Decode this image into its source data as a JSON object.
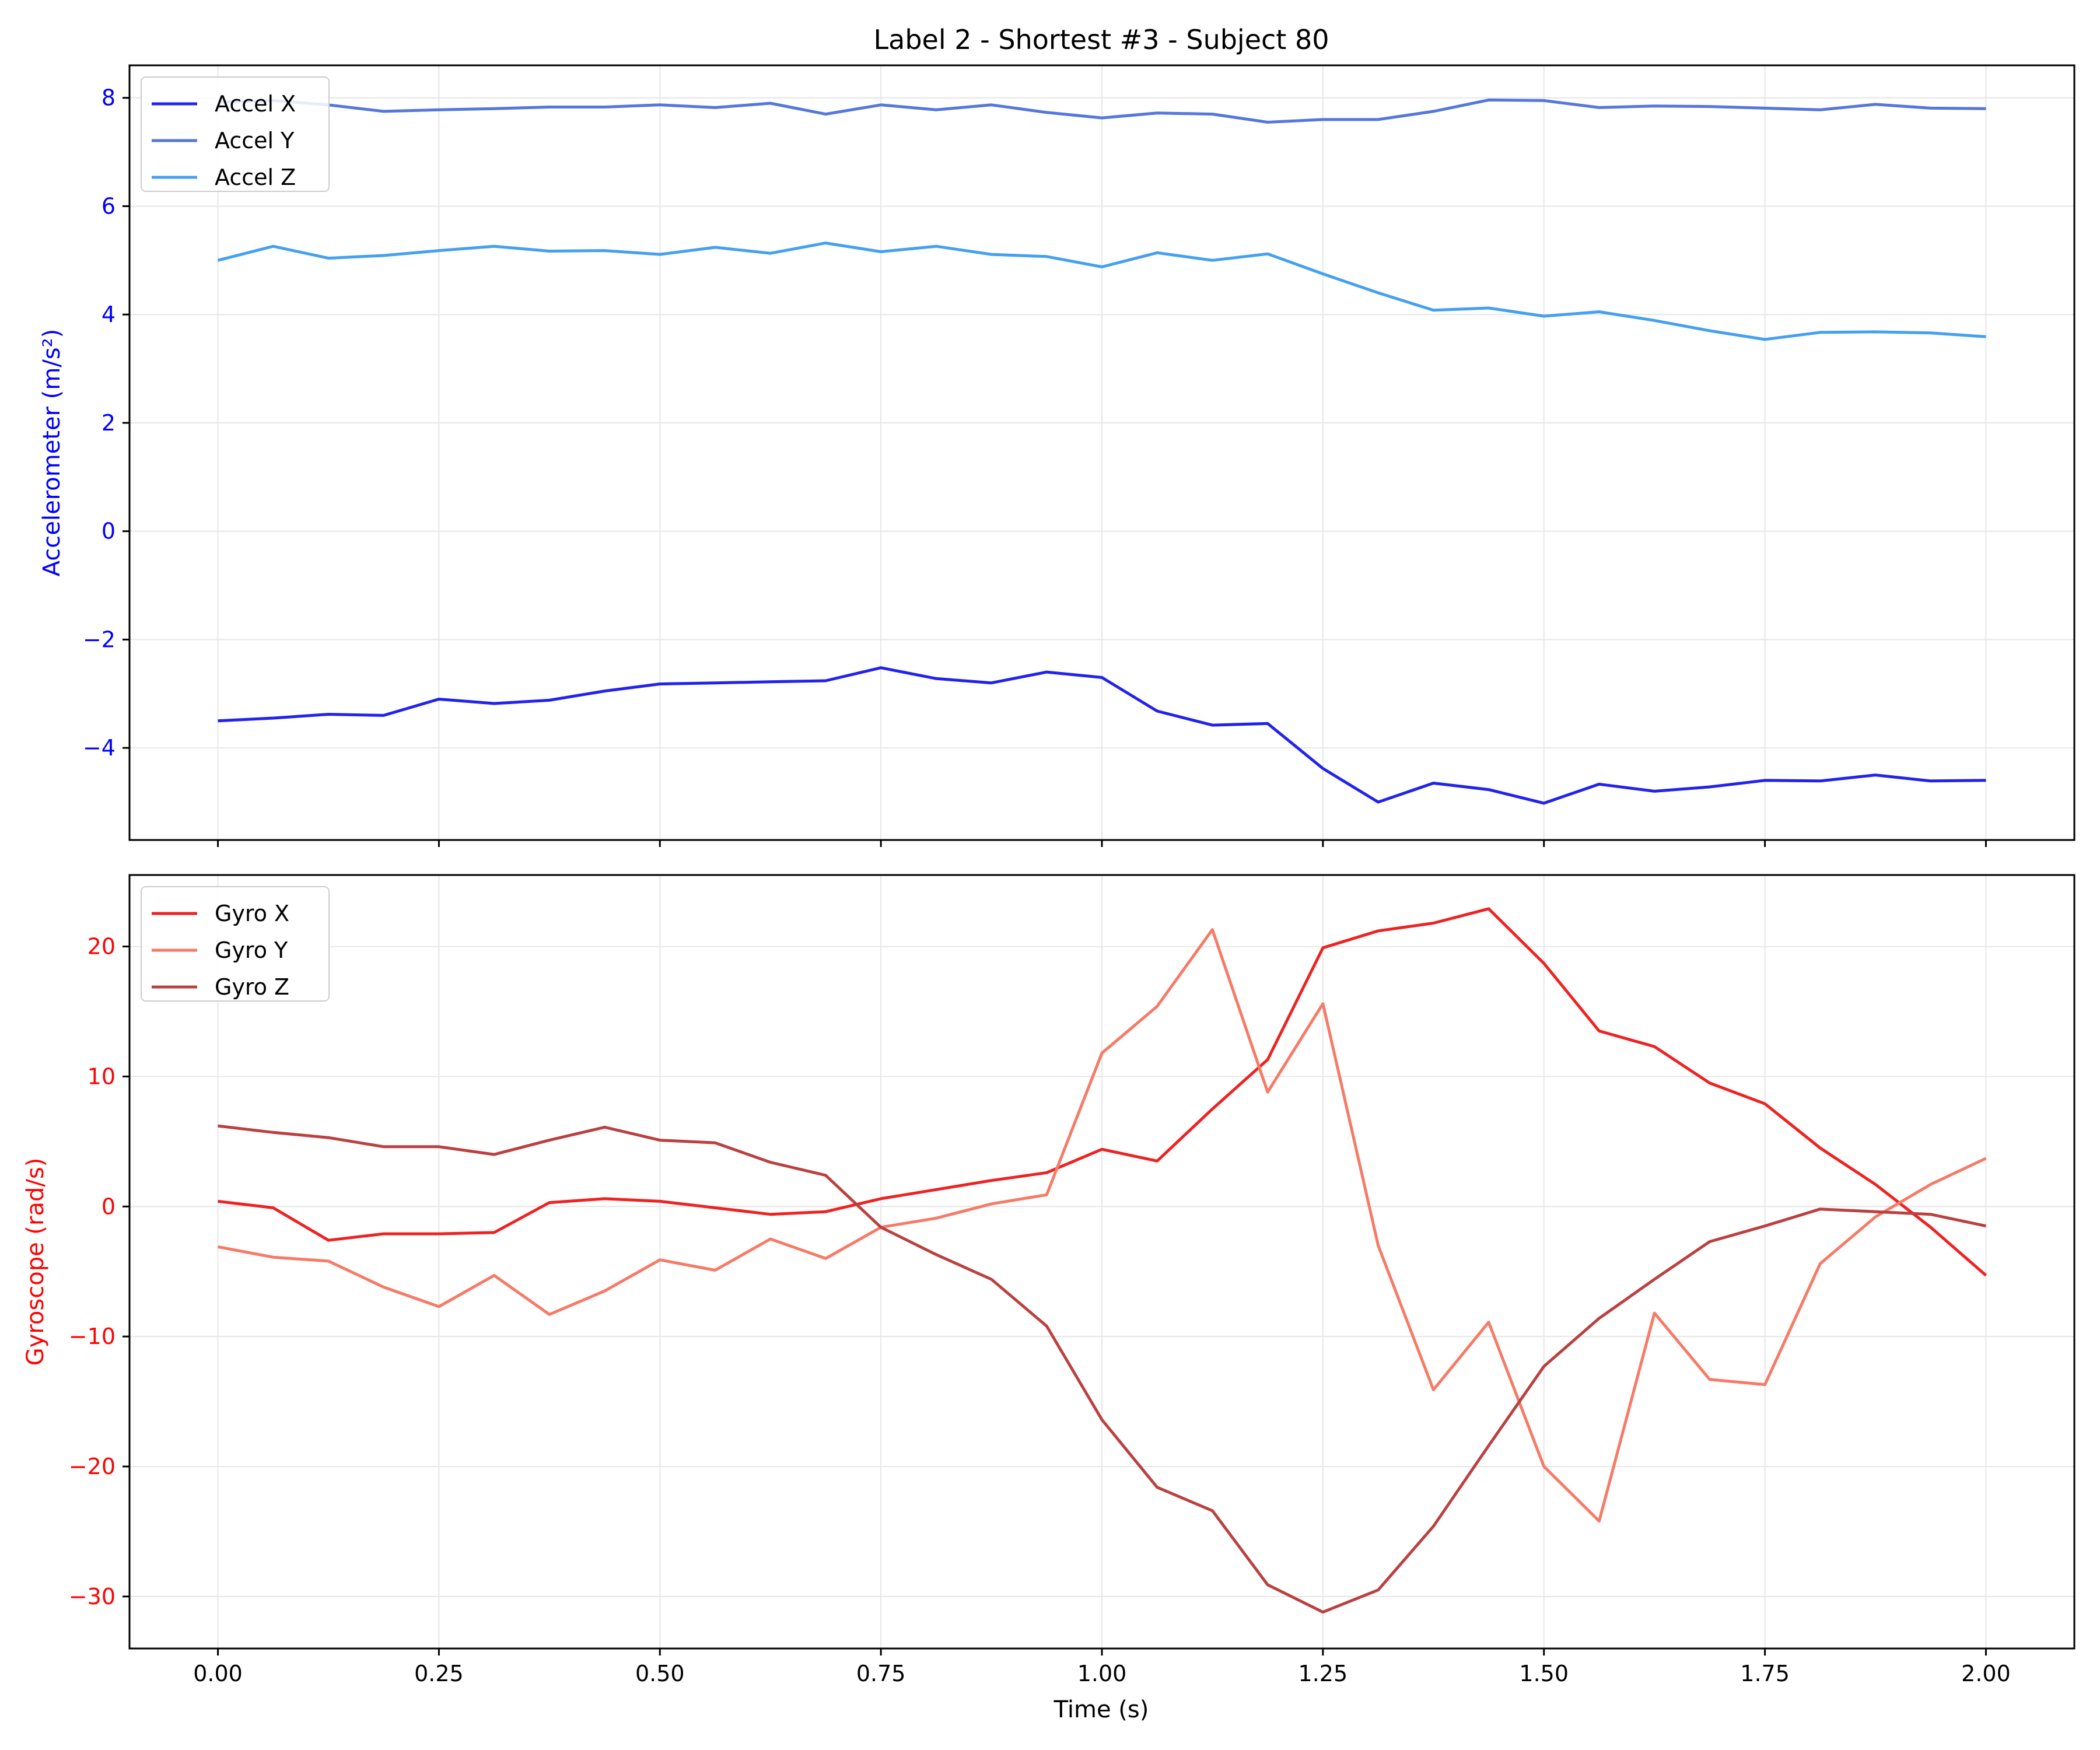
{
  "chart_data": {
    "type": "line",
    "title": "Label 2 - Shortest #3 - Subject 80",
    "xlabel": "Time (s)",
    "xlim": [
      -0.1,
      2.1
    ],
    "xticks": [
      "0.00",
      "0.25",
      "0.50",
      "0.75",
      "1.00",
      "1.25",
      "1.50",
      "1.75",
      "2.00"
    ],
    "x": [
      0.0,
      0.0625,
      0.125,
      0.1875,
      0.25,
      0.3125,
      0.375,
      0.4375,
      0.5,
      0.5625,
      0.625,
      0.6875,
      0.75,
      0.8125,
      0.875,
      0.9375,
      1.0,
      1.0625,
      1.125,
      1.1875,
      1.25,
      1.3125,
      1.375,
      1.4375,
      1.5,
      1.5625,
      1.625,
      1.6875,
      1.75,
      1.8125,
      1.875,
      1.9375,
      2.0
    ],
    "grid": true,
    "panels": [
      {
        "ylabel": "Accelerometer (m/s²)",
        "ylabel_color": "#0000ff",
        "tick_color": "#0000ff",
        "ylim": [
          -5.7,
          8.6
        ],
        "yticks": [
          8,
          6,
          4,
          2,
          0,
          -2,
          -4
        ],
        "yticklabels": [
          "8",
          "6",
          "4",
          "2",
          "0",
          "−2",
          "−4"
        ],
        "legend": "top-left",
        "series": [
          {
            "name": "Accel X",
            "color": "#2222ee",
            "values": [
              -3.5,
              -3.45,
              -3.38,
              -3.4,
              -3.1,
              -3.18,
              -3.12,
              -2.95,
              -2.82,
              -2.8,
              -2.78,
              -2.76,
              -2.52,
              -2.72,
              -2.8,
              -2.6,
              -2.7,
              -3.32,
              -3.58,
              -3.55,
              -4.38,
              -5.0,
              -4.65,
              -4.77,
              -5.02,
              -4.67,
              -4.8,
              -4.72,
              -4.6,
              -4.61,
              -4.5,
              -4.61,
              -4.6
            ]
          },
          {
            "name": "Accel Y",
            "color": "#5577dd",
            "values": [
              7.92,
              7.95,
              7.87,
              7.75,
              7.78,
              7.8,
              7.83,
              7.83,
              7.87,
              7.82,
              7.9,
              7.7,
              7.87,
              7.78,
              7.87,
              7.73,
              7.63,
              7.72,
              7.7,
              7.55,
              7.6,
              7.6,
              7.75,
              7.96,
              7.95,
              7.82,
              7.85,
              7.84,
              7.81,
              7.78,
              7.88,
              7.81,
              7.8
            ]
          },
          {
            "name": "Accel Z",
            "color": "#44a0f0",
            "values": [
              5.0,
              5.26,
              5.04,
              5.09,
              5.18,
              5.26,
              5.17,
              5.18,
              5.11,
              5.24,
              5.13,
              5.32,
              5.16,
              5.26,
              5.11,
              5.07,
              4.88,
              5.14,
              5.0,
              5.12,
              4.75,
              4.4,
              4.08,
              4.12,
              3.97,
              4.05,
              3.89,
              3.7,
              3.54,
              3.67,
              3.68,
              3.66,
              3.59
            ]
          }
        ]
      },
      {
        "ylabel": "Gyroscope (rad/s)",
        "ylabel_color": "#ff0000",
        "tick_color": "#ff0000",
        "ylim": [
          -34,
          25.5
        ],
        "yticks": [
          20,
          10,
          0,
          -10,
          -20,
          -30
        ],
        "yticklabels": [
          "20",
          "10",
          "0",
          "−10",
          "−20",
          "−30"
        ],
        "legend": "top-left",
        "series": [
          {
            "name": "Gyro X",
            "color": "#ee2222",
            "values": [
              0.4,
              -0.1,
              -2.6,
              -2.1,
              -2.1,
              -2.0,
              0.3,
              0.6,
              0.4,
              -0.1,
              -0.6,
              -0.4,
              0.6,
              1.3,
              2.0,
              2.6,
              4.4,
              3.5,
              7.5,
              11.3,
              19.9,
              21.2,
              21.8,
              22.9,
              18.7,
              13.5,
              12.3,
              9.5,
              7.9,
              4.5,
              1.7,
              -1.6,
              -5.3
            ]
          },
          {
            "name": "Gyro Y",
            "color": "#f77a66",
            "values": [
              -3.1,
              -3.9,
              -4.2,
              -6.2,
              -7.7,
              -5.3,
              -8.3,
              -6.5,
              -4.1,
              -4.9,
              -2.5,
              -4.0,
              -1.6,
              -0.9,
              0.2,
              0.9,
              11.8,
              15.4,
              21.3,
              8.8,
              15.6,
              -3.0,
              -14.1,
              -8.9,
              -20.0,
              -24.2,
              -8.2,
              -13.3,
              -13.7,
              -4.4,
              -0.8,
              1.7,
              3.7
            ]
          },
          {
            "name": "Gyro Z",
            "color": "#bb4040",
            "values": [
              6.2,
              5.7,
              5.3,
              4.6,
              4.6,
              4.0,
              5.1,
              6.1,
              5.1,
              4.9,
              3.4,
              2.4,
              -1.6,
              -3.7,
              -5.6,
              -9.2,
              -16.4,
              -21.6,
              -23.4,
              -29.1,
              -31.2,
              -29.5,
              -24.6,
              -18.4,
              -12.3,
              -8.6,
              -5.6,
              -2.7,
              -1.5,
              -0.2,
              -0.4,
              -0.6,
              -1.5
            ]
          }
        ]
      }
    ]
  }
}
